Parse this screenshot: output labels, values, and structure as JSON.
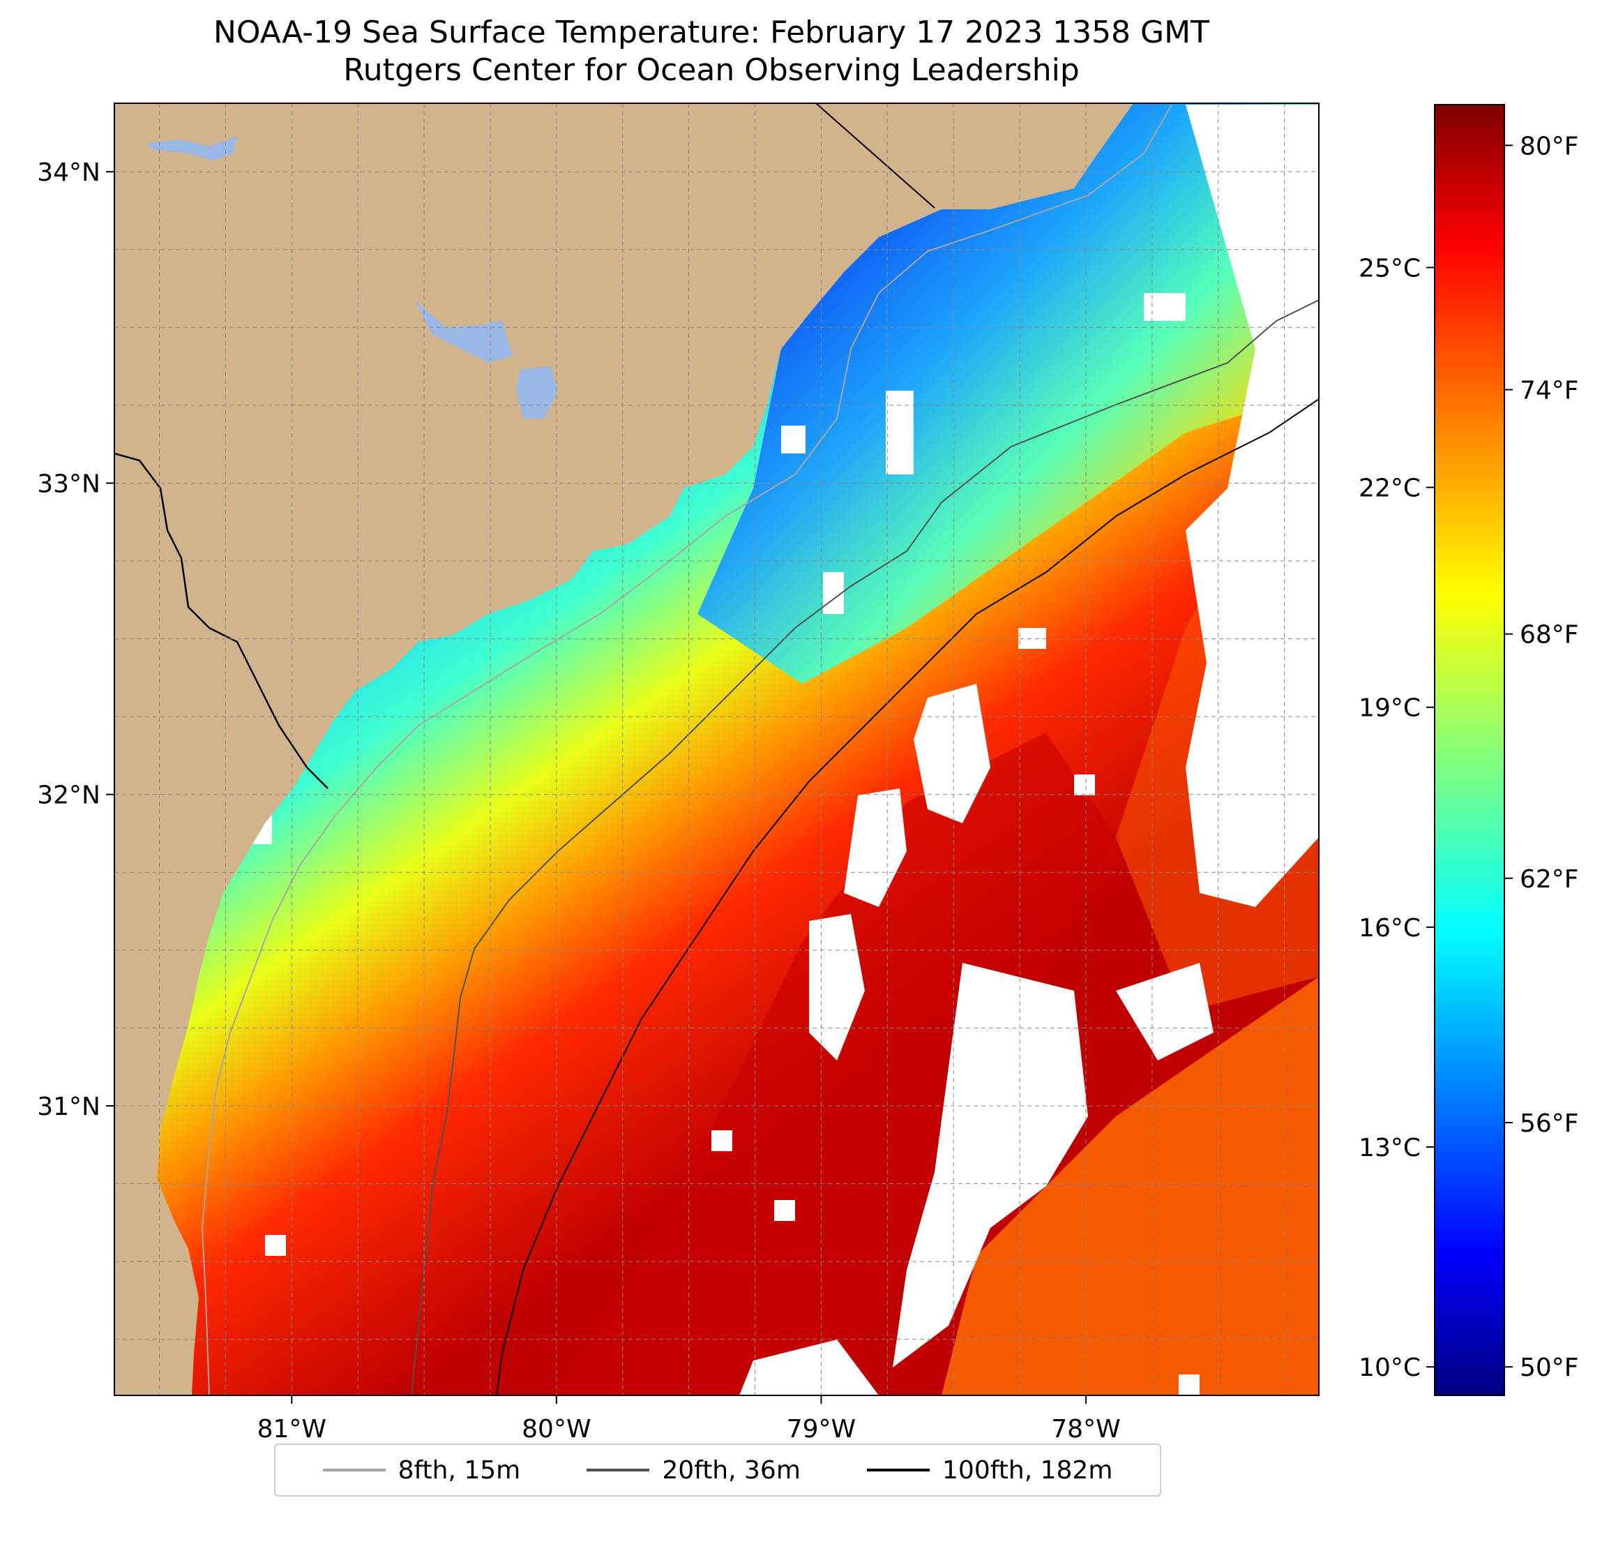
{
  "title": {
    "line1": "NOAA-19 Sea Surface Temperature: February 17 2023 1358 GMT",
    "line2": "Rutgers Center for Ocean Observing Leadership"
  },
  "map": {
    "lon_range": [
      -81.67,
      -77.12
    ],
    "lat_range": [
      30.07,
      34.22
    ],
    "lat_ticks": [
      {
        "value": 34,
        "label": "34°N"
      },
      {
        "value": 33,
        "label": "33°N"
      },
      {
        "value": 32,
        "label": "32°N"
      },
      {
        "value": 31,
        "label": "31°N"
      }
    ],
    "lon_ticks": [
      {
        "value": -81,
        "label": "81°W"
      },
      {
        "value": -80,
        "label": "80°W"
      },
      {
        "value": -79,
        "label": "79°W"
      },
      {
        "value": -78,
        "label": "78°W"
      }
    ],
    "gridlines": true,
    "colors": {
      "land": "#d2b48c",
      "lakes": "#9ab8e6",
      "coastline": "#000000",
      "cloud_mask": "#ffffff"
    }
  },
  "colorbar": {
    "colormap": "jet",
    "range_f": [
      49.3,
      81.0
    ],
    "celsius_ticks": [
      {
        "value": 25,
        "label": "25°C"
      },
      {
        "value": 22,
        "label": "22°C"
      },
      {
        "value": 19,
        "label": "19°C"
      },
      {
        "value": 16,
        "label": "16°C"
      },
      {
        "value": 13,
        "label": "13°C"
      },
      {
        "value": 10,
        "label": "10°C"
      }
    ],
    "fahrenheit_ticks": [
      {
        "value": 80,
        "label": "80°F"
      },
      {
        "value": 74,
        "label": "74°F"
      },
      {
        "value": 68,
        "label": "68°F"
      },
      {
        "value": 62,
        "label": "62°F"
      },
      {
        "value": 56,
        "label": "56°F"
      },
      {
        "value": 50,
        "label": "50°F"
      }
    ]
  },
  "legend": {
    "location": "bottom-center",
    "items": [
      {
        "label": "8fth, 15m",
        "color": "#a6a6a6"
      },
      {
        "label": "20fth, 36m",
        "color": "#505050"
      },
      {
        "label": "100fth, 182m",
        "color": "#000000"
      }
    ]
  }
}
